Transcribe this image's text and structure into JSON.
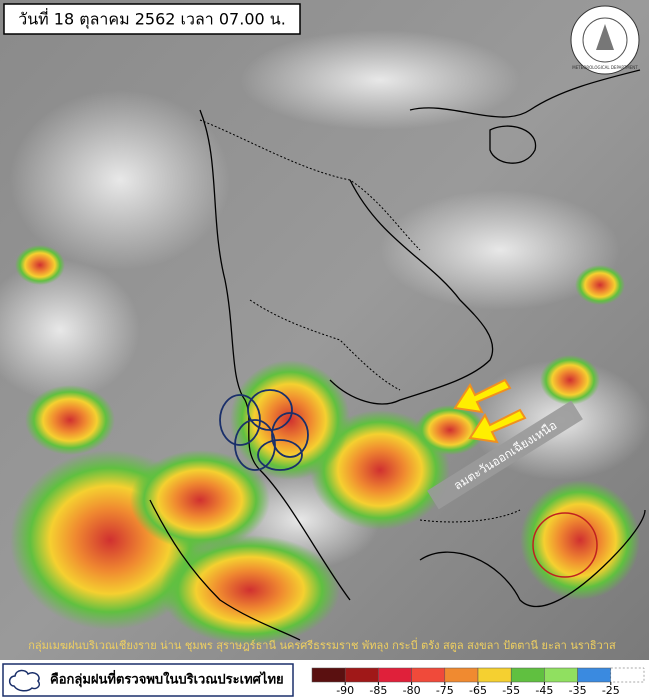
{
  "header": {
    "title": "วันที่ 18 ตุลาคม 2562 เวลา 07.00 น."
  },
  "logo": {
    "text": "METEOROLOGICAL DEPARTMENT"
  },
  "annotation": "ลมตะวันออกเฉียงเหนือ",
  "caption": "กลุ่มเมฆฝนบริเวณเชียงราย น่าน ชุมพร สุราษฎร์ธานี นครศรีธรรมราช พัทลุง กระบี่ ตรัง สตูล สงขลา ปัตตานี ยะลา นราธิวาส",
  "legend": {
    "label": "คือกลุ่มฝนที่ตรวจพบในบริเวณประเทศไทย"
  },
  "color_scale": {
    "ticks": [
      -90,
      -85,
      -80,
      -75,
      -65,
      -55,
      -45,
      -35,
      -25
    ],
    "colors": [
      "#5a1010",
      "#a01818",
      "#e0203a",
      "#f04a3a",
      "#f08a30",
      "#f5d030",
      "#60c040",
      "#90e060",
      "#3a8ae0",
      "#ffffff"
    ]
  }
}
